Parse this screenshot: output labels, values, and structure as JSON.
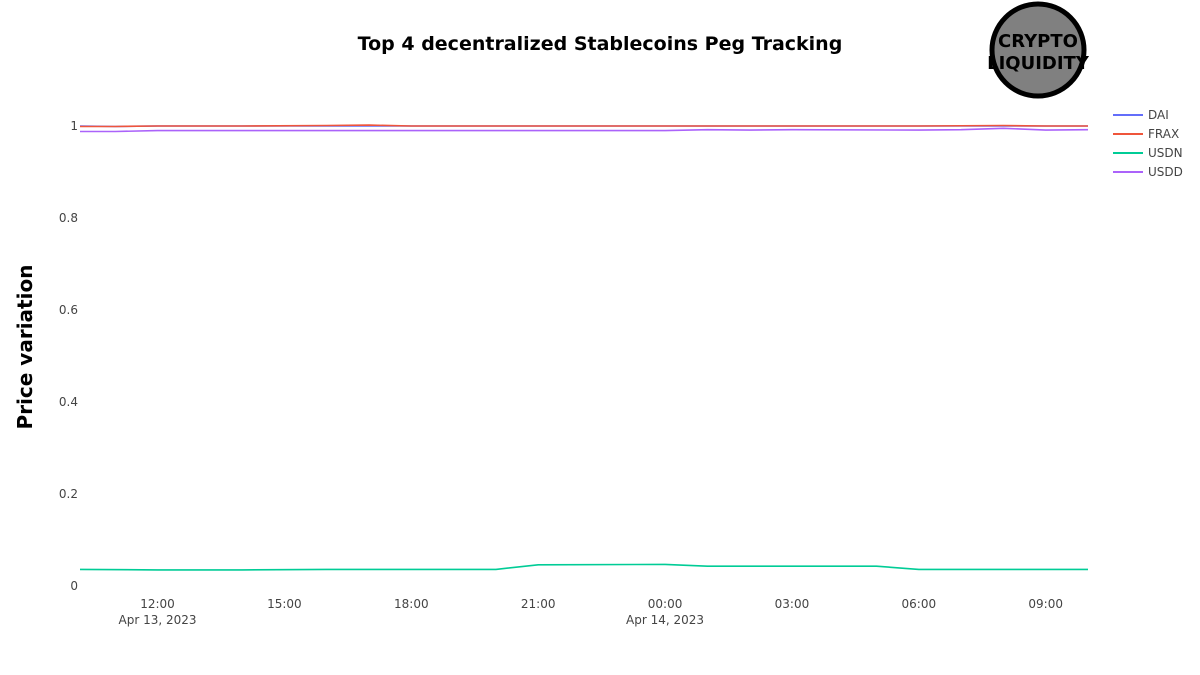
{
  "chart_data": {
    "type": "line",
    "title": "Top 4 decentralized Stablecoins Peg Tracking",
    "xlabel": "",
    "ylabel": "Price variation",
    "ylim": [
      0,
      1.1
    ],
    "yticks": [
      0,
      0.2,
      0.4,
      0.6,
      0.8,
      1
    ],
    "ytick_labels": [
      "0",
      "0.2",
      "0.4",
      "0.6",
      "0.8",
      "1"
    ],
    "xlim": [
      "2023-04-13 10:10",
      "2023-04-14 10:00"
    ],
    "xticks": [
      {
        "t": "2023-04-13 12:00",
        "label": "12:00",
        "sublabel": "Apr 13, 2023"
      },
      {
        "t": "2023-04-13 15:00",
        "label": "15:00",
        "sublabel": ""
      },
      {
        "t": "2023-04-13 18:00",
        "label": "18:00",
        "sublabel": ""
      },
      {
        "t": "2023-04-13 21:00",
        "label": "21:00",
        "sublabel": ""
      },
      {
        "t": "2023-04-14 00:00",
        "label": "00:00",
        "sublabel": "Apr 14, 2023"
      },
      {
        "t": "2023-04-14 03:00",
        "label": "03:00",
        "sublabel": ""
      },
      {
        "t": "2023-04-14 06:00",
        "label": "06:00",
        "sublabel": ""
      },
      {
        "t": "2023-04-14 09:00",
        "label": "09:00",
        "sublabel": ""
      }
    ],
    "grid": false,
    "legend": "top-right",
    "series": [
      {
        "name": "DAI",
        "color": "#636efa",
        "x": [
          "2023-04-13 10:10",
          "2023-04-13 11:00",
          "2023-04-13 12:00",
          "2023-04-13 14:00",
          "2023-04-13 16:00",
          "2023-04-13 18:00",
          "2023-04-13 21:00",
          "2023-04-14 00:00",
          "2023-04-14 03:00",
          "2023-04-14 06:00",
          "2023-04-14 08:00",
          "2023-04-14 10:00"
        ],
        "values": [
          1.0,
          0.999,
          1.0,
          1.0,
          1.0,
          1.0,
          1.0,
          1.0,
          1.0,
          1.0,
          1.0,
          1.0
        ]
      },
      {
        "name": "FRAX",
        "color": "#ef553b",
        "x": [
          "2023-04-13 10:10",
          "2023-04-13 11:00",
          "2023-04-13 12:00",
          "2023-04-13 14:00",
          "2023-04-13 16:00",
          "2023-04-13 17:00",
          "2023-04-13 18:00",
          "2023-04-13 21:00",
          "2023-04-14 00:00",
          "2023-04-14 03:00",
          "2023-04-14 06:00",
          "2023-04-14 08:00",
          "2023-04-14 09:00",
          "2023-04-14 10:00"
        ],
        "values": [
          0.999,
          0.999,
          1.0,
          1.0,
          1.001,
          1.002,
          1.0,
          1.0,
          1.0,
          1.0,
          1.0,
          1.001,
          1.0,
          1.0
        ]
      },
      {
        "name": "USDN",
        "color": "#00cc96",
        "x": [
          "2023-04-13 10:10",
          "2023-04-13 12:00",
          "2023-04-13 14:00",
          "2023-04-13 16:00",
          "2023-04-13 18:00",
          "2023-04-13 20:00",
          "2023-04-13 21:00",
          "2023-04-14 00:00",
          "2023-04-14 01:00",
          "2023-04-14 03:00",
          "2023-04-14 05:00",
          "2023-04-14 06:00",
          "2023-04-14 08:00",
          "2023-04-14 10:00"
        ],
        "values": [
          0.036,
          0.035,
          0.035,
          0.036,
          0.036,
          0.036,
          0.046,
          0.047,
          0.043,
          0.043,
          0.043,
          0.036,
          0.036,
          0.036
        ]
      },
      {
        "name": "USDD",
        "color": "#ab63fa",
        "x": [
          "2023-04-13 10:10",
          "2023-04-13 11:00",
          "2023-04-13 12:00",
          "2023-04-13 14:00",
          "2023-04-13 16:00",
          "2023-04-13 18:00",
          "2023-04-13 21:00",
          "2023-04-14 00:00",
          "2023-04-14 01:00",
          "2023-04-14 02:00",
          "2023-04-14 03:00",
          "2023-04-14 06:00",
          "2023-04-14 07:00",
          "2023-04-14 08:00",
          "2023-04-14 09:00",
          "2023-04-14 10:00"
        ],
        "values": [
          0.988,
          0.988,
          0.99,
          0.99,
          0.99,
          0.99,
          0.99,
          0.99,
          0.992,
          0.991,
          0.992,
          0.991,
          0.992,
          0.995,
          0.991,
          0.992
        ]
      }
    ]
  },
  "logo": {
    "line1": "CRYPTO",
    "line2": "LIQUIDITY",
    "fill": "#808080",
    "ring": "#000000"
  }
}
